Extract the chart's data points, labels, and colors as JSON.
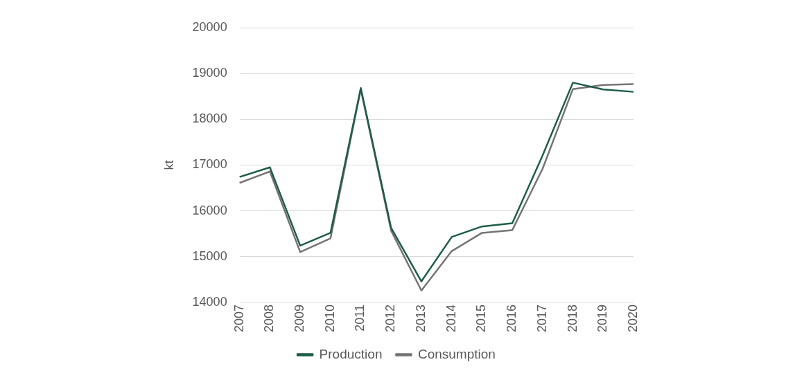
{
  "chart_data": {
    "type": "line",
    "ylabel": "kt",
    "categories": [
      "2007",
      "2008",
      "2009",
      "2010",
      "2011",
      "2012",
      "2013",
      "2014",
      "2015",
      "2016",
      "2017",
      "2018",
      "2019",
      "2020"
    ],
    "series": [
      {
        "name": "Production",
        "color": "#1e5c4a",
        "values": [
          16740,
          16950,
          15240,
          15520,
          18680,
          15630,
          14460,
          15430,
          15660,
          15730,
          17210,
          18800,
          18650,
          18600
        ]
      },
      {
        "name": "Consumption",
        "color": "#747474",
        "values": [
          16610,
          16860,
          15100,
          15400,
          18650,
          15570,
          14260,
          15120,
          15520,
          15580,
          16920,
          18660,
          18750,
          18770
        ]
      }
    ],
    "ylim": [
      14000,
      20000
    ],
    "yticks": [
      14000,
      15000,
      16000,
      17000,
      18000,
      19000,
      20000
    ],
    "grid": "y",
    "legend": "bottom",
    "marker": "none",
    "line_style": "solid"
  }
}
